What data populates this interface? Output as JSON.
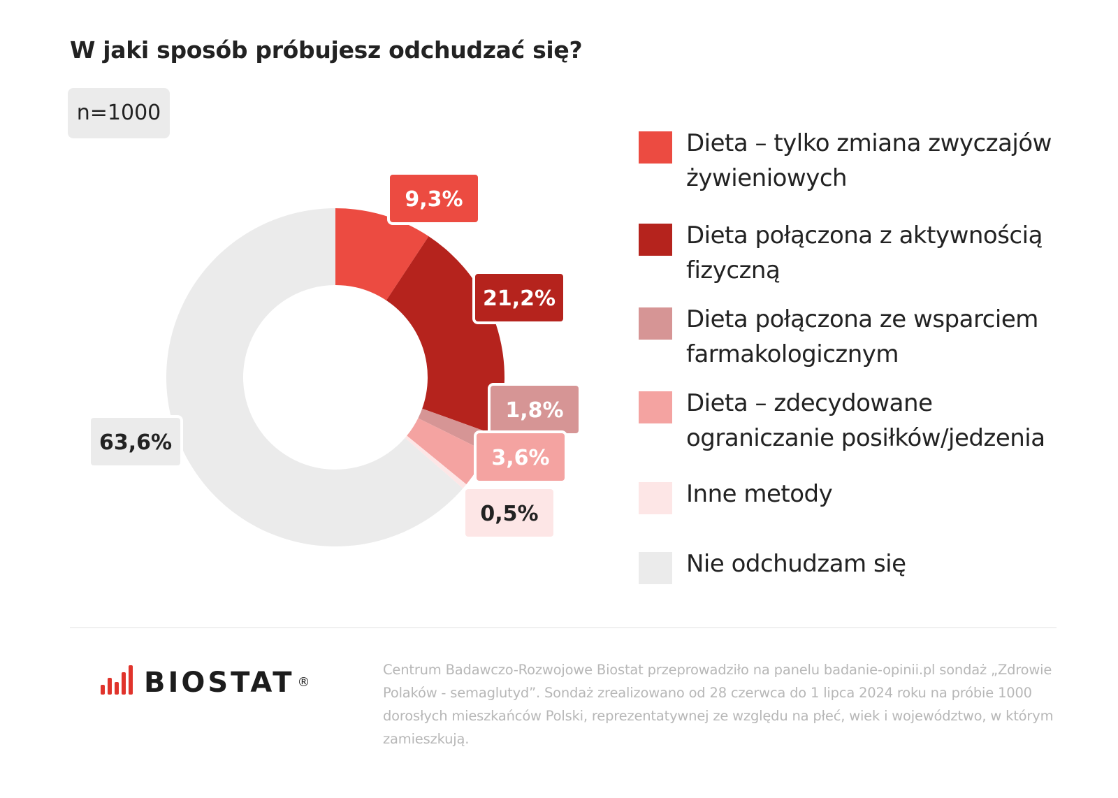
{
  "title": "W jaki sposób próbujesz odchudzać się?",
  "sample_label": "n=1000",
  "chart_data": {
    "type": "pie",
    "variant": "donut",
    "categories": [
      "Dieta – tylko zmiana zwyczajów żywieniowych",
      "Dieta połączona z aktywnością fizyczną",
      "Dieta połączona ze wsparciem farmakologicznym",
      "Dieta – zdecydowane ograniczanie posiłków/jedzenia",
      "Inne metody",
      "Nie odchudzam się"
    ],
    "values": [
      9.3,
      21.2,
      1.8,
      3.6,
      0.5,
      63.6
    ],
    "data_labels": [
      "9,3%",
      "21,2%",
      "1,8%",
      "3,6%",
      "0,5%",
      "63,6%"
    ],
    "colors": [
      "#ec4b41",
      "#b5231d",
      "#d69595",
      "#f4a3a1",
      "#fde6e6",
      "#ebebeb"
    ],
    "label_text_colors": [
      "#ffffff",
      "#ffffff",
      "#ffffff",
      "#ffffff",
      "#222222",
      "#222222"
    ],
    "legend_position": "right"
  },
  "legend": [
    {
      "label": "Dieta – tylko zmiana zwyczajów żywieniowych",
      "color": "#ec4b41"
    },
    {
      "label": "Dieta połączona z aktywnością fizyczną",
      "color": "#b5231d"
    },
    {
      "label": "Dieta połączona ze wsparciem farmakologicznym",
      "color": "#d69595"
    },
    {
      "label": "Dieta – zdecydowane ograniczanie posiłków/jedzenia",
      "color": "#f4a3a1"
    },
    {
      "label": "Inne metody",
      "color": "#fde6e6"
    },
    {
      "label": "Nie odchudzam się",
      "color": "#ebebeb"
    }
  ],
  "footer": {
    "logo_text": "BIOSTAT",
    "logo_mark": "®",
    "logo_color": "#e0332b",
    "note": "Centrum Badawczo-Rozwojowe Biostat przeprowadziło na panelu badanie-opinii.pl sondaż „Zdrowie Polaków - semaglutyd”. Sondaż zrealizowano od 28 czerwca do 1 lipca 2024 roku na próbie 1000 dorosłych mieszkańców Polski, reprezentatywnej ze względu na płeć, wiek i województwo, w którym zamieszkują."
  }
}
